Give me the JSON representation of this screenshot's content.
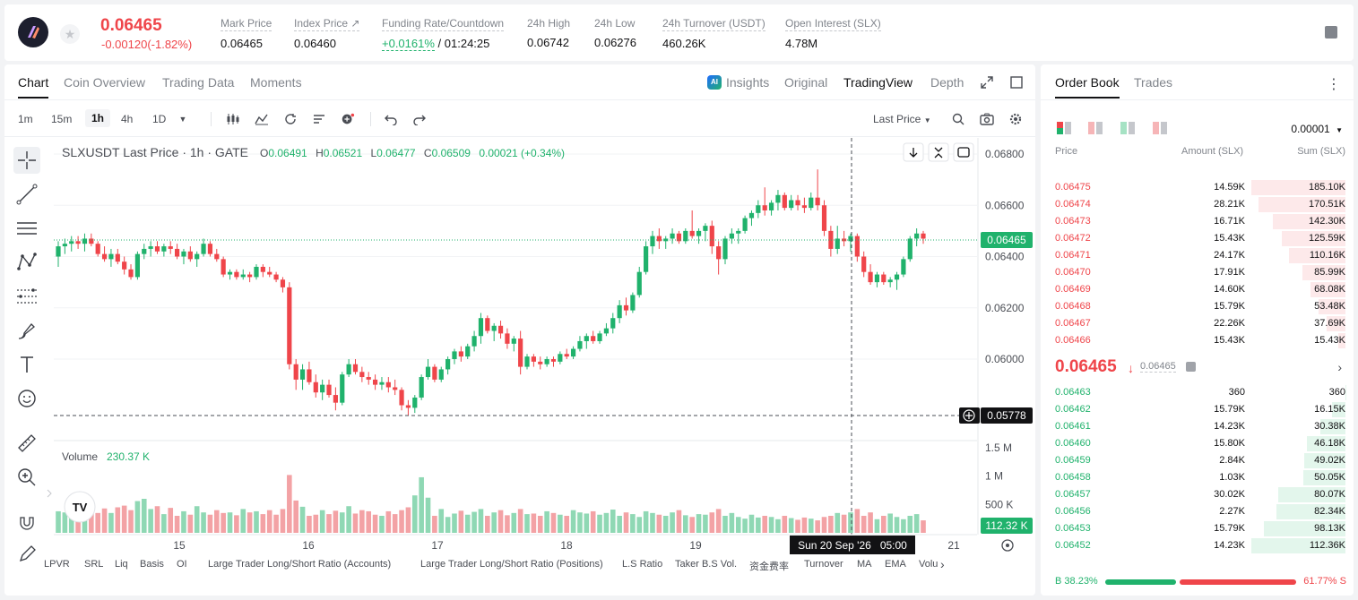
{
  "header": {
    "last_price": "0.06465",
    "change": "-0.00120(-1.82%)",
    "stats": [
      {
        "label": "Mark Price",
        "value": "0.06465"
      },
      {
        "label": "Index Price",
        "value": "0.06460"
      },
      {
        "label": "Funding Rate/Countdown",
        "value_rate": "+0.0161%",
        "value_countdown": "/ 01:24:25"
      },
      {
        "label": "24h High",
        "value": "0.06742"
      },
      {
        "label": "24h Low",
        "value": "0.06276"
      },
      {
        "label": "24h Turnover (USDT)",
        "value": "460.26K"
      },
      {
        "label": "Open Interest (SLX)",
        "value": "4.78M"
      }
    ]
  },
  "tabs": {
    "left": [
      "Chart",
      "Coin Overview",
      "Trading Data",
      "Moments"
    ],
    "insights": "Insights",
    "views": [
      "Original",
      "TradingView",
      "Depth"
    ]
  },
  "toolbar": {
    "timeframes": [
      "1m",
      "15m",
      "1h",
      "4h",
      "1D"
    ],
    "last_price_selector": "Last Price"
  },
  "chart": {
    "legend_title": "SLXUSDT Last Price · 1h · GATE",
    "ohlc": {
      "o_label": "O",
      "o": "0.06491",
      "h_label": "H",
      "h": "0.06521",
      "l_label": "L",
      "l": "0.06477",
      "c_label": "C",
      "c": "0.06509",
      "chg": "0.00021 (+0.34%)"
    },
    "price_ticks": [
      "0.06800",
      "0.06600",
      "0.06400",
      "0.06200",
      "0.06000"
    ],
    "current_price_label": "0.06465",
    "crosshair_price_label": "0.05778",
    "volume_label": "Volume",
    "volume_value": "230.37 K",
    "volume_ticks": [
      "1.5 M",
      "1 M",
      "500 K"
    ],
    "volume_crosshair_label": "112.32 K",
    "x_ticks": [
      "15",
      "16",
      "17",
      "18",
      "19",
      "21"
    ],
    "crosshair_time": "Sun 20 Sep '26   05:00",
    "watermark": "TV"
  },
  "indicators": [
    "LPVR",
    "SRL",
    "Liq",
    "Basis",
    "OI",
    "Large Trader Long/Short Ratio (Accounts)",
    "Large Trader Long/Short Ratio (Positions)",
    "L.S Ratio",
    "Taker B.S Vol.",
    "资金费率",
    "Turnover",
    "MA",
    "EMA",
    "Volu"
  ],
  "orderbook": {
    "tabs": [
      "Order Book",
      "Trades"
    ],
    "precision": "0.00001",
    "columns": {
      "price": "Price",
      "amount": "Amount (SLX)",
      "sum": "Sum (SLX)"
    },
    "asks": [
      {
        "price": "0.06475",
        "amount": "14.59K",
        "sum": "185.10K",
        "depth": 1.0
      },
      {
        "price": "0.06474",
        "amount": "28.21K",
        "sum": "170.51K",
        "depth": 0.92
      },
      {
        "price": "0.06473",
        "amount": "16.71K",
        "sum": "142.30K",
        "depth": 0.77
      },
      {
        "price": "0.06472",
        "amount": "15.43K",
        "sum": "125.59K",
        "depth": 0.68
      },
      {
        "price": "0.06471",
        "amount": "24.17K",
        "sum": "110.16K",
        "depth": 0.6
      },
      {
        "price": "0.06470",
        "amount": "17.91K",
        "sum": "85.99K",
        "depth": 0.46
      },
      {
        "price": "0.06469",
        "amount": "14.60K",
        "sum": "68.08K",
        "depth": 0.37
      },
      {
        "price": "0.06468",
        "amount": "15.79K",
        "sum": "53.48K",
        "depth": 0.29
      },
      {
        "price": "0.06467",
        "amount": "22.26K",
        "sum": "37.69K",
        "depth": 0.2
      },
      {
        "price": "0.06466",
        "amount": "15.43K",
        "sum": "15.43K",
        "depth": 0.08
      }
    ],
    "mid_price": "0.06465",
    "mid_arrow": "↓",
    "mark_price": "0.06465",
    "bids": [
      {
        "price": "0.06463",
        "amount": "360",
        "sum": "360",
        "depth": 0.003
      },
      {
        "price": "0.06462",
        "amount": "15.79K",
        "sum": "16.15K",
        "depth": 0.14
      },
      {
        "price": "0.06461",
        "amount": "14.23K",
        "sum": "30.38K",
        "depth": 0.27
      },
      {
        "price": "0.06460",
        "amount": "15.80K",
        "sum": "46.18K",
        "depth": 0.41
      },
      {
        "price": "0.06459",
        "amount": "2.84K",
        "sum": "49.02K",
        "depth": 0.44
      },
      {
        "price": "0.06458",
        "amount": "1.03K",
        "sum": "50.05K",
        "depth": 0.45
      },
      {
        "price": "0.06457",
        "amount": "30.02K",
        "sum": "80.07K",
        "depth": 0.71
      },
      {
        "price": "0.06456",
        "amount": "2.27K",
        "sum": "82.34K",
        "depth": 0.73
      },
      {
        "price": "0.06453",
        "amount": "15.79K",
        "sum": "98.13K",
        "depth": 0.87
      },
      {
        "price": "0.06452",
        "amount": "14.23K",
        "sum": "112.36K",
        "depth": 1.0
      }
    ],
    "buy_ratio": "38.23%",
    "sell_ratio": "61.77%",
    "buy_fraction": 0.3823,
    "buy_label": "B",
    "sell_label": "S"
  },
  "colors": {
    "up": "#20b26c",
    "down": "#ef454a",
    "accent": "#121214"
  },
  "candles": [
    [
      0.064,
      0.0646,
      0.0636,
      0.0644
    ],
    [
      0.0644,
      0.0647,
      0.0641,
      0.0645
    ],
    [
      0.0645,
      0.0648,
      0.0642,
      0.0646
    ],
    [
      0.0646,
      0.0648,
      0.0643,
      0.0645
    ],
    [
      0.0645,
      0.0649,
      0.0642,
      0.0647
    ],
    [
      0.0647,
      0.0649,
      0.0644,
      0.0645
    ],
    [
      0.0645,
      0.0646,
      0.064,
      0.0641
    ],
    [
      0.0641,
      0.0644,
      0.0638,
      0.0639
    ],
    [
      0.0639,
      0.0643,
      0.0636,
      0.0641
    ],
    [
      0.0641,
      0.0643,
      0.0637,
      0.0638
    ],
    [
      0.0638,
      0.064,
      0.0633,
      0.0635
    ],
    [
      0.0635,
      0.0637,
      0.0631,
      0.0632
    ],
    [
      0.0632,
      0.0642,
      0.0631,
      0.0641
    ],
    [
      0.0641,
      0.0645,
      0.0639,
      0.0643
    ],
    [
      0.0643,
      0.0646,
      0.064,
      0.0644
    ],
    [
      0.0644,
      0.0646,
      0.0641,
      0.0642
    ],
    [
      0.0642,
      0.0645,
      0.064,
      0.0644
    ],
    [
      0.0644,
      0.0646,
      0.0641,
      0.0643
    ],
    [
      0.0643,
      0.0645,
      0.0639,
      0.064
    ],
    [
      0.064,
      0.0643,
      0.0637,
      0.0642
    ],
    [
      0.0642,
      0.0644,
      0.0638,
      0.0639
    ],
    [
      0.0639,
      0.0642,
      0.0636,
      0.0641
    ],
    [
      0.0641,
      0.0647,
      0.064,
      0.0645
    ],
    [
      0.0645,
      0.0646,
      0.064,
      0.0641
    ],
    [
      0.0641,
      0.0643,
      0.0638,
      0.0639
    ],
    [
      0.0639,
      0.064,
      0.0632,
      0.0633
    ],
    [
      0.0633,
      0.0635,
      0.0631,
      0.0634
    ],
    [
      0.0634,
      0.0635,
      0.0631,
      0.0632
    ],
    [
      0.0632,
      0.0635,
      0.0631,
      0.0633
    ],
    [
      0.0633,
      0.0634,
      0.063,
      0.0632
    ],
    [
      0.0632,
      0.0637,
      0.0631,
      0.0636
    ],
    [
      0.0636,
      0.0637,
      0.0632,
      0.0634
    ],
    [
      0.0634,
      0.0636,
      0.0632,
      0.0633
    ],
    [
      0.0633,
      0.0634,
      0.063,
      0.0631
    ],
    [
      0.0631,
      0.0632,
      0.0626,
      0.0628
    ],
    [
      0.0628,
      0.063,
      0.0596,
      0.0598
    ],
    [
      0.0598,
      0.06,
      0.0588,
      0.0592
    ],
    [
      0.0592,
      0.0598,
      0.0588,
      0.0596
    ],
    [
      0.0596,
      0.0599,
      0.059,
      0.0591
    ],
    [
      0.0591,
      0.0594,
      0.0585,
      0.0587
    ],
    [
      0.0587,
      0.0592,
      0.0584,
      0.059
    ],
    [
      0.059,
      0.0592,
      0.0585,
      0.0586
    ],
    [
      0.0586,
      0.0589,
      0.058,
      0.0583
    ],
    [
      0.0583,
      0.0595,
      0.0582,
      0.0594
    ],
    [
      0.0594,
      0.06,
      0.0593,
      0.0598
    ],
    [
      0.0598,
      0.06,
      0.0594,
      0.0595
    ],
    [
      0.0595,
      0.0597,
      0.0591,
      0.0593
    ],
    [
      0.0593,
      0.0595,
      0.059,
      0.0592
    ],
    [
      0.0592,
      0.0594,
      0.0588,
      0.059
    ],
    [
      0.059,
      0.0593,
      0.0588,
      0.0591
    ],
    [
      0.0591,
      0.0593,
      0.0587,
      0.0589
    ],
    [
      0.0589,
      0.0592,
      0.0586,
      0.0588
    ],
    [
      0.0588,
      0.0589,
      0.058,
      0.0582
    ],
    [
      0.0582,
      0.0584,
      0.0578,
      0.0581
    ],
    [
      0.0581,
      0.0586,
      0.0579,
      0.0585
    ],
    [
      0.0585,
      0.0594,
      0.0584,
      0.0593
    ],
    [
      0.0593,
      0.06,
      0.0592,
      0.0597
    ],
    [
      0.0597,
      0.0598,
      0.0591,
      0.0592
    ],
    [
      0.0592,
      0.0597,
      0.0591,
      0.0596
    ],
    [
      0.0596,
      0.0601,
      0.0594,
      0.06
    ],
    [
      0.06,
      0.0604,
      0.0598,
      0.0603
    ],
    [
      0.0603,
      0.0605,
      0.0599,
      0.0601
    ],
    [
      0.0601,
      0.0606,
      0.06,
      0.0605
    ],
    [
      0.0605,
      0.0611,
      0.0603,
      0.0609
    ],
    [
      0.0609,
      0.0618,
      0.0606,
      0.0616
    ],
    [
      0.0616,
      0.0617,
      0.061,
      0.0611
    ],
    [
      0.0611,
      0.0614,
      0.0607,
      0.0613
    ],
    [
      0.0613,
      0.0615,
      0.0608,
      0.061
    ],
    [
      0.061,
      0.0612,
      0.0604,
      0.0606
    ],
    [
      0.0606,
      0.0609,
      0.0603,
      0.0608
    ],
    [
      0.0608,
      0.0611,
      0.0594,
      0.0597
    ],
    [
      0.0597,
      0.0602,
      0.0596,
      0.0601
    ],
    [
      0.0601,
      0.0602,
      0.0597,
      0.0599
    ],
    [
      0.0599,
      0.0601,
      0.0596,
      0.0598
    ],
    [
      0.0598,
      0.0601,
      0.0597,
      0.06
    ],
    [
      0.06,
      0.0601,
      0.0597,
      0.0599
    ],
    [
      0.0599,
      0.0603,
      0.0598,
      0.0602
    ],
    [
      0.0602,
      0.0604,
      0.06,
      0.0601
    ],
    [
      0.0601,
      0.0605,
      0.06,
      0.0604
    ],
    [
      0.0604,
      0.0609,
      0.0603,
      0.0607
    ],
    [
      0.0607,
      0.061,
      0.0604,
      0.0609
    ],
    [
      0.0609,
      0.0611,
      0.0606,
      0.0607
    ],
    [
      0.0607,
      0.0611,
      0.0606,
      0.061
    ],
    [
      0.061,
      0.0614,
      0.0609,
      0.0612
    ],
    [
      0.0612,
      0.0618,
      0.061,
      0.0616
    ],
    [
      0.0616,
      0.0623,
      0.0614,
      0.0621
    ],
    [
      0.0621,
      0.0624,
      0.0617,
      0.0619
    ],
    [
      0.0619,
      0.0626,
      0.0618,
      0.0625
    ],
    [
      0.0625,
      0.0636,
      0.0624,
      0.0634
    ],
    [
      0.0634,
      0.0646,
      0.0633,
      0.0644
    ],
    [
      0.0644,
      0.065,
      0.0641,
      0.0648
    ],
    [
      0.0648,
      0.0651,
      0.0643,
      0.0646
    ],
    [
      0.0646,
      0.0648,
      0.0643,
      0.0647
    ],
    [
      0.0647,
      0.0651,
      0.0645,
      0.0649
    ],
    [
      0.0649,
      0.065,
      0.0645,
      0.0646
    ],
    [
      0.0646,
      0.0651,
      0.0645,
      0.065
    ],
    [
      0.065,
      0.0658,
      0.0647,
      0.0648
    ],
    [
      0.0648,
      0.0651,
      0.0645,
      0.065
    ],
    [
      0.065,
      0.0653,
      0.0646,
      0.0652
    ],
    [
      0.0652,
      0.0654,
      0.0641,
      0.0644
    ],
    [
      0.0644,
      0.0646,
      0.0633,
      0.0639
    ],
    [
      0.0639,
      0.0648,
      0.0637,
      0.0647
    ],
    [
      0.0647,
      0.0651,
      0.0645,
      0.0649
    ],
    [
      0.0649,
      0.0651,
      0.0645,
      0.065
    ],
    [
      0.065,
      0.0656,
      0.0649,
      0.0655
    ],
    [
      0.0655,
      0.0658,
      0.0652,
      0.0657
    ],
    [
      0.0657,
      0.0662,
      0.0655,
      0.066
    ],
    [
      0.066,
      0.0667,
      0.0656,
      0.0658
    ],
    [
      0.0658,
      0.0662,
      0.0656,
      0.0661
    ],
    [
      0.0661,
      0.0666,
      0.0658,
      0.0664
    ],
    [
      0.0664,
      0.0665,
      0.0658,
      0.0659
    ],
    [
      0.0659,
      0.0664,
      0.0658,
      0.0662
    ],
    [
      0.0662,
      0.0664,
      0.0658,
      0.066
    ],
    [
      0.066,
      0.0663,
      0.0657,
      0.0659
    ],
    [
      0.0659,
      0.0665,
      0.0658,
      0.0663
    ],
    [
      0.0663,
      0.0674,
      0.0658,
      0.066
    ],
    [
      0.066,
      0.0662,
      0.0648,
      0.065
    ],
    [
      0.065,
      0.0652,
      0.064,
      0.0643
    ],
    [
      0.0643,
      0.0652,
      0.0641,
      0.0647
    ],
    [
      0.0647,
      0.065,
      0.0644,
      0.0646
    ],
    [
      0.0646,
      0.0649,
      0.0642,
      0.0648
    ],
    [
      0.0648,
      0.0649,
      0.0638,
      0.064
    ],
    [
      0.064,
      0.0642,
      0.0632,
      0.0634
    ],
    [
      0.0634,
      0.0637,
      0.0629,
      0.063
    ],
    [
      0.063,
      0.0634,
      0.0628,
      0.0633
    ],
    [
      0.0633,
      0.0634,
      0.0629,
      0.063
    ],
    [
      0.063,
      0.0632,
      0.0628,
      0.0631
    ],
    [
      0.0631,
      0.0634,
      0.0627,
      0.0633
    ],
    [
      0.0633,
      0.064,
      0.0632,
      0.0639
    ],
    [
      0.0639,
      0.0648,
      0.0638,
      0.0647
    ],
    [
      0.0647,
      0.0651,
      0.0644,
      0.0649
    ],
    [
      0.0649,
      0.065,
      0.0645,
      0.0647
    ]
  ],
  "volumes": [
    0.38,
    0.36,
    0.4,
    0.3,
    0.33,
    0.46,
    0.35,
    0.43,
    0.35,
    0.45,
    0.48,
    0.4,
    0.56,
    0.6,
    0.42,
    0.47,
    0.33,
    0.44,
    0.3,
    0.38,
    0.32,
    0.47,
    0.36,
    0.32,
    0.4,
    0.35,
    0.36,
    0.31,
    0.42,
    0.36,
    0.38,
    0.33,
    0.4,
    0.32,
    0.42,
    1.02,
    0.57,
    0.46,
    0.3,
    0.32,
    0.4,
    0.33,
    0.39,
    0.36,
    0.47,
    0.34,
    0.4,
    0.38,
    0.32,
    0.3,
    0.38,
    0.33,
    0.4,
    0.45,
    0.66,
    0.98,
    0.62,
    0.3,
    0.42,
    0.28,
    0.34,
    0.39,
    0.32,
    0.37,
    0.42,
    0.3,
    0.36,
    0.4,
    0.31,
    0.35,
    0.42,
    0.33,
    0.34,
    0.3,
    0.38,
    0.35,
    0.32,
    0.3,
    0.4,
    0.36,
    0.34,
    0.38,
    0.32,
    0.35,
    0.41,
    0.3,
    0.36,
    0.33,
    0.28,
    0.38,
    0.35,
    0.32,
    0.3,
    0.36,
    0.4,
    0.31,
    0.28,
    0.33,
    0.32,
    0.36,
    0.42,
    0.3,
    0.35,
    0.28,
    0.25,
    0.32,
    0.27,
    0.3,
    0.28,
    0.24,
    0.3,
    0.26,
    0.23,
    0.27,
    0.25,
    0.22,
    0.28,
    0.3,
    0.35,
    0.32,
    0.36,
    0.42,
    0.3,
    0.36,
    0.24,
    0.3,
    0.34,
    0.28,
    0.24,
    0.3,
    0.33,
    0.22,
    0.28,
    0.25,
    0.16
  ]
}
